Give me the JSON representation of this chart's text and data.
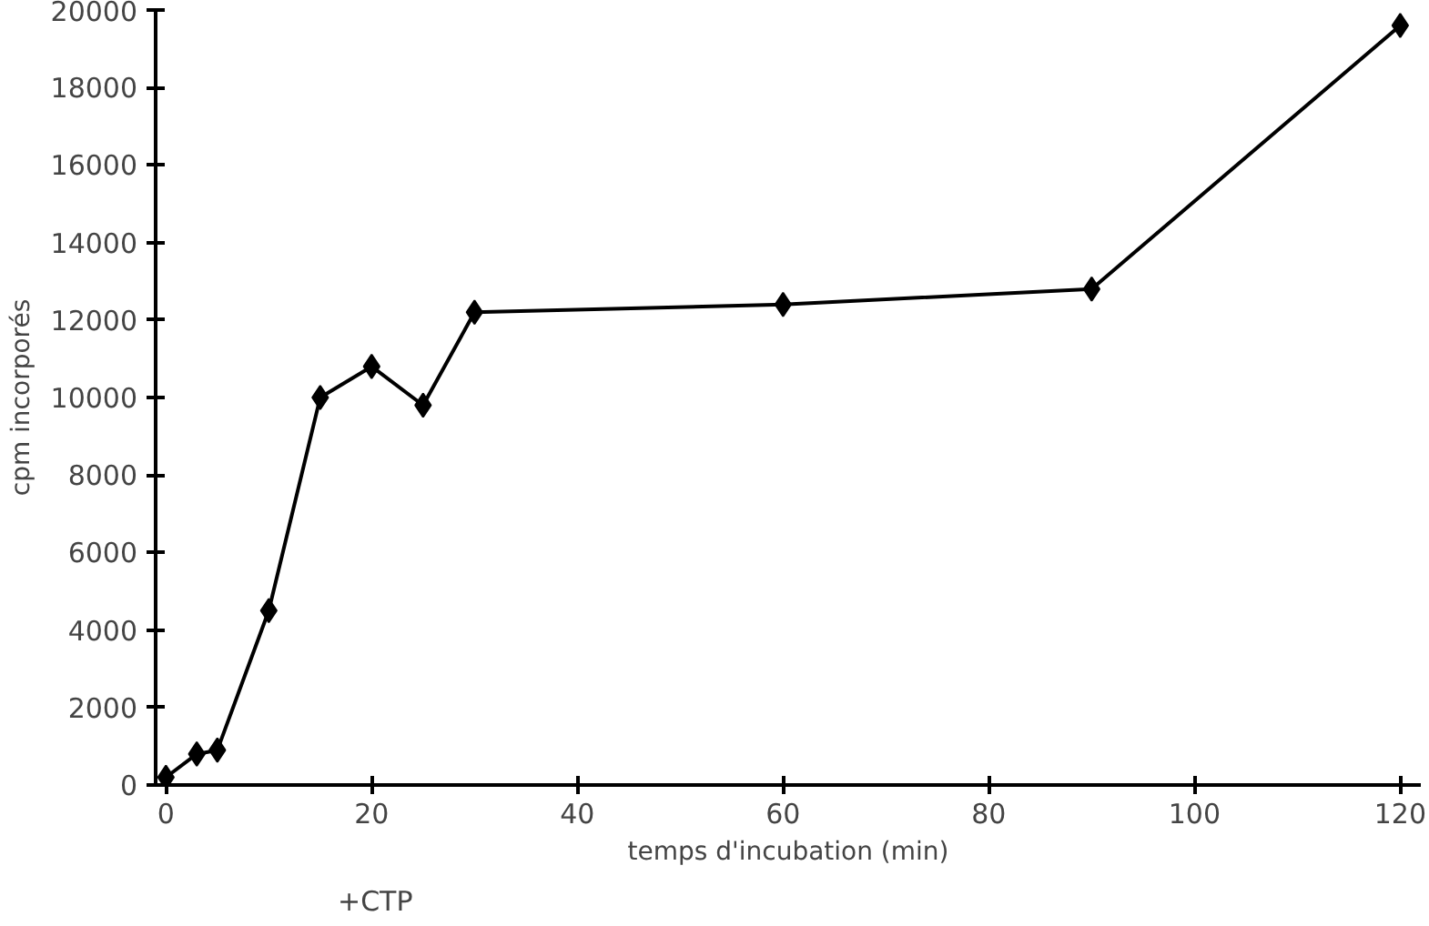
{
  "chart_data": {
    "type": "line",
    "xlabel": "temps d'incubation (min)",
    "ylabel": "cpm incorporés",
    "x": [
      0,
      3,
      5,
      10,
      15,
      20,
      25,
      30,
      60,
      90,
      120
    ],
    "series": [
      {
        "color": "#000000",
        "values": [
          200,
          800,
          900,
          4500,
          10000,
          10800,
          9800,
          12200,
          12400,
          12800,
          19600
        ]
      }
    ],
    "xlim": [
      -1,
      122
    ],
    "ylim": [
      0,
      20000
    ],
    "xticks": [
      0,
      20,
      40,
      60,
      80,
      100,
      120
    ],
    "yticks": [
      0,
      2000,
      4000,
      6000,
      8000,
      10000,
      12000,
      14000,
      16000,
      18000,
      20000
    ],
    "annotations": [
      "+CTP"
    ],
    "marker": "diamond",
    "line_style": "solid",
    "grid": false
  }
}
